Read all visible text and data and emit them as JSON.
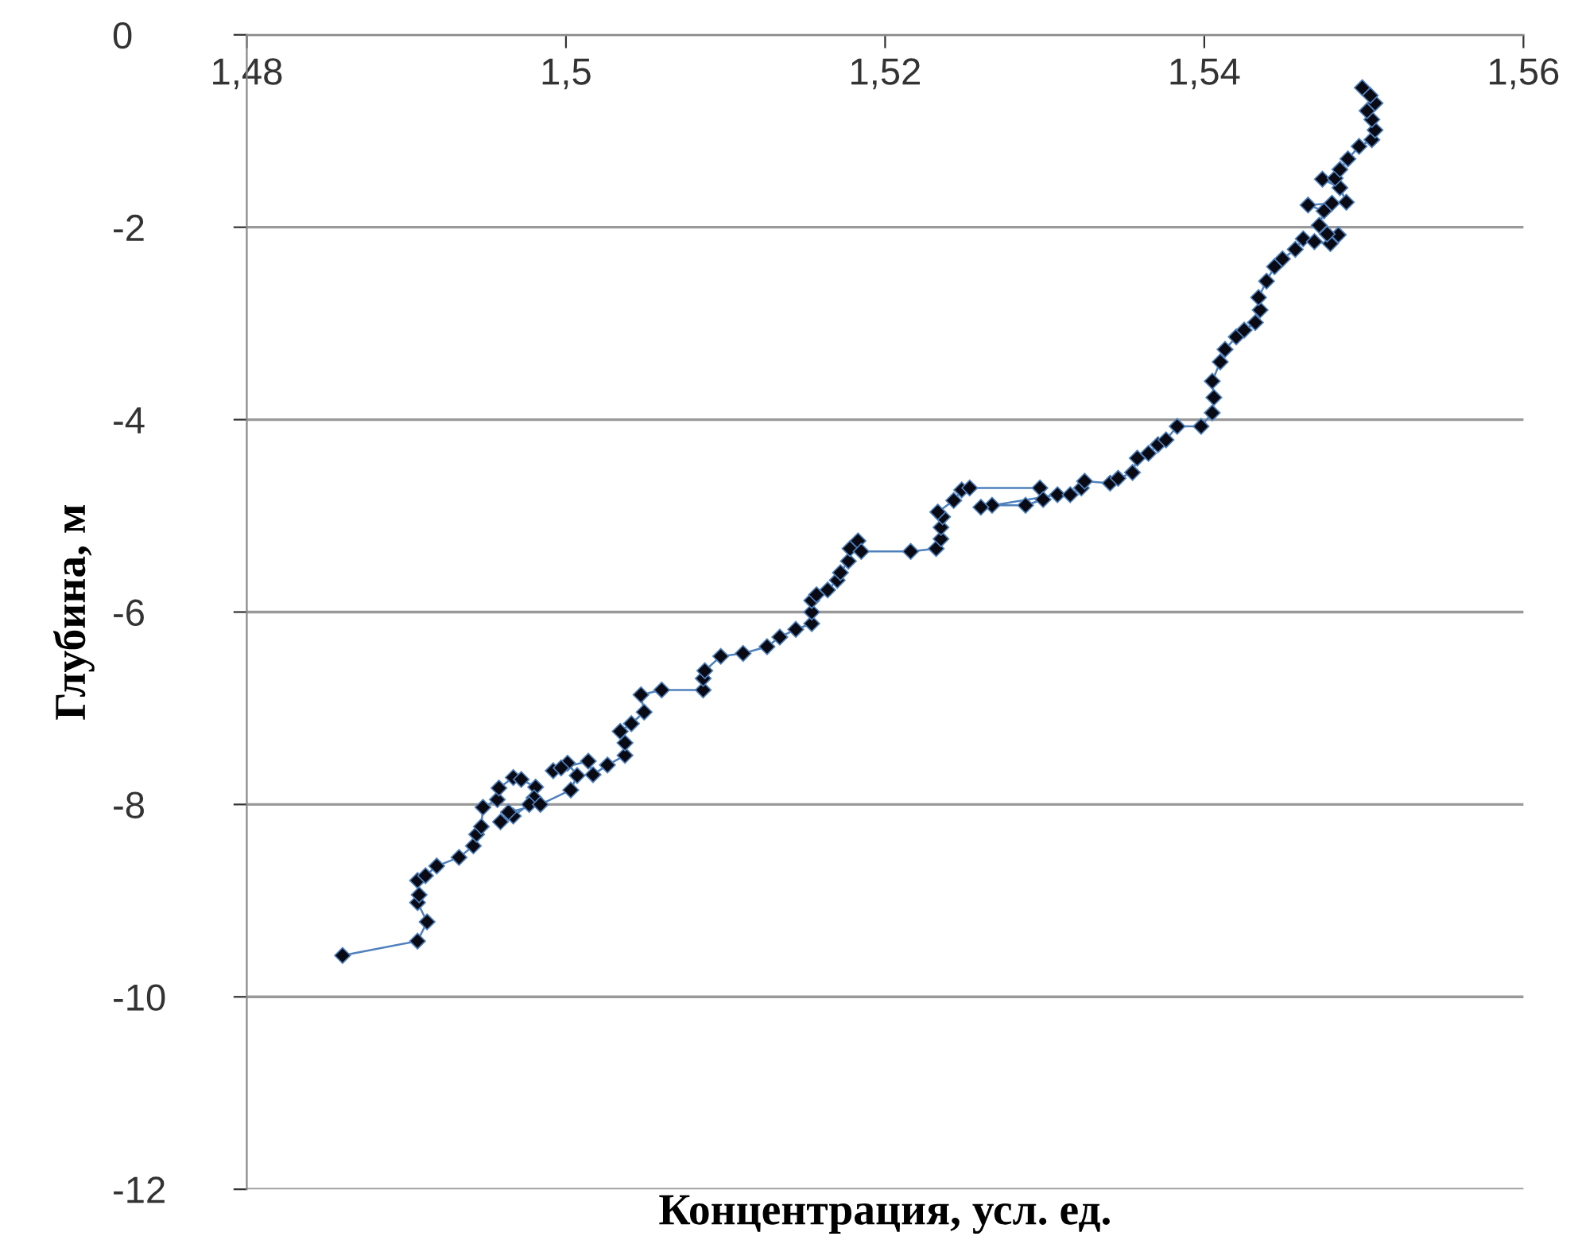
{
  "chart_data": {
    "type": "line",
    "xlabel": "Концентрация, усл. ед.",
    "ylabel": "Глубина, м",
    "xlim": [
      1.48,
      1.56
    ],
    "xticks": [
      {
        "value": 1.48,
        "label": "1,48"
      },
      {
        "value": 1.5,
        "label": "1,5"
      },
      {
        "value": 1.52,
        "label": "1,52"
      },
      {
        "value": 1.54,
        "label": "1,54"
      },
      {
        "value": 1.56,
        "label": "1,56"
      }
    ],
    "ylim": [
      -12,
      0
    ],
    "yticks": [
      -12,
      -10,
      -8,
      -6,
      -4,
      -2,
      0
    ],
    "grid": "y",
    "marker": "diamond",
    "line_style": "solid",
    "series": [
      {
        "color": "#4f81bd",
        "x": [
          1.486,
          1.4907,
          1.4913,
          1.4907,
          1.4908,
          1.4907,
          1.4912,
          1.4919,
          1.4933,
          1.4942,
          1.4944,
          1.4947,
          1.4948,
          1.4957,
          1.4958,
          1.4967,
          1.4972,
          1.4981,
          1.498,
          1.4977,
          1.4967,
          1.4959,
          1.4964,
          1.4984,
          1.5003,
          1.5007,
          1.5001,
          1.4992,
          1.4997,
          1.5014,
          1.5017,
          1.5026,
          1.5037,
          1.5037,
          1.5034,
          1.5041,
          1.5049,
          1.5047,
          1.506,
          1.5086,
          1.5086,
          1.5087,
          1.5097,
          1.5111,
          1.5126,
          1.5134,
          1.5144,
          1.5154,
          1.5154,
          1.5154,
          1.5157,
          1.5164,
          1.517,
          1.5172,
          1.5177,
          1.5178,
          1.5183,
          1.5185,
          1.5216,
          1.5232,
          1.5235,
          1.5235,
          1.5236,
          1.5233,
          1.5243,
          1.5248,
          1.5253,
          1.5297,
          1.5299,
          1.5288,
          1.5267,
          1.526,
          1.5308,
          1.5316,
          1.5323,
          1.5325,
          1.5341,
          1.5346,
          1.5355,
          1.5358,
          1.5365,
          1.5371,
          1.5376,
          1.5383,
          1.5398,
          1.5405,
          1.5406,
          1.5405,
          1.541,
          1.5413,
          1.542,
          1.5425,
          1.5432,
          1.5435,
          1.5434,
          1.5439,
          1.5444,
          1.5449,
          1.5457,
          1.5462,
          1.5469,
          1.5479,
          1.5484,
          1.5477,
          1.5472,
          1.5475,
          1.5465,
          1.548,
          1.5489,
          1.5485,
          1.5474,
          1.5482,
          1.5485,
          1.549,
          1.5497,
          1.5505,
          1.5507,
          1.5505,
          1.5502,
          1.5507,
          1.5504,
          1.5499
        ],
        "values": [
          -9.57,
          -9.42,
          -9.22,
          -9.02,
          -8.94,
          -8.79,
          -8.74,
          -8.64,
          -8.55,
          -8.43,
          -8.31,
          -8.23,
          -8.03,
          -7.95,
          -7.83,
          -7.72,
          -7.74,
          -7.82,
          -7.93,
          -8.0,
          -8.12,
          -8.18,
          -8.08,
          -8.0,
          -7.85,
          -7.7,
          -7.57,
          -7.65,
          -7.62,
          -7.55,
          -7.69,
          -7.59,
          -7.49,
          -7.36,
          -7.24,
          -7.16,
          -7.04,
          -6.86,
          -6.81,
          -6.81,
          -6.69,
          -6.61,
          -6.46,
          -6.43,
          -6.36,
          -6.26,
          -6.18,
          -6.12,
          -6.0,
          -5.88,
          -5.82,
          -5.77,
          -5.67,
          -5.59,
          -5.47,
          -5.34,
          -5.26,
          -5.37,
          -5.37,
          -5.34,
          -5.24,
          -5.12,
          -5.01,
          -4.96,
          -4.84,
          -4.73,
          -4.71,
          -4.71,
          -4.83,
          -4.89,
          -4.89,
          -4.91,
          -4.78,
          -4.78,
          -4.71,
          -4.64,
          -4.66,
          -4.61,
          -4.55,
          -4.4,
          -4.35,
          -4.26,
          -4.21,
          -4.07,
          -4.07,
          -3.93,
          -3.77,
          -3.6,
          -3.4,
          -3.27,
          -3.14,
          -3.07,
          -2.99,
          -2.86,
          -2.73,
          -2.56,
          -2.41,
          -2.33,
          -2.23,
          -2.12,
          -2.15,
          -2.17,
          -2.08,
          -2.07,
          -1.98,
          -1.83,
          -1.77,
          -1.75,
          -1.74,
          -1.59,
          -1.5,
          -1.49,
          -1.4,
          -1.29,
          -1.16,
          -1.09,
          -0.99,
          -0.88,
          -0.79,
          -0.71,
          -0.63,
          -0.55
        ]
      }
    ]
  }
}
